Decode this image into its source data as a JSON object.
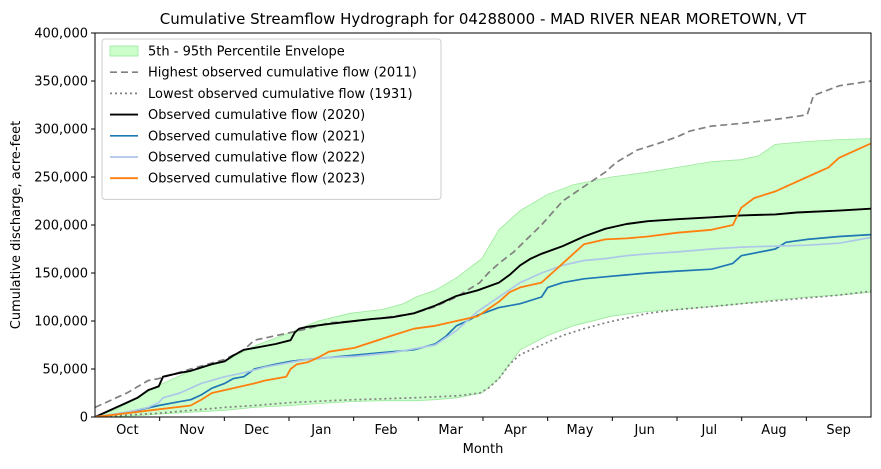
{
  "chart_data": {
    "type": "line",
    "title": "Cumulative Streamflow Hydrograph for 04288000 - MAD RIVER NEAR MORETOWN, VT",
    "xlabel": "Month",
    "ylabel": "Cumulative discharge, acre-feet",
    "x_unit": "day of water year (Oct 1 = 0)",
    "xlim": [
      0,
      365
    ],
    "ylim": [
      0,
      400000
    ],
    "y_ticks": [
      0,
      50000,
      100000,
      150000,
      200000,
      250000,
      300000,
      350000,
      400000
    ],
    "y_tick_labels": [
      "0",
      "50,000",
      "100,000",
      "150,000",
      "200,000",
      "250,000",
      "300,000",
      "350,000",
      "400,000"
    ],
    "x_categories": [
      "Oct",
      "Nov",
      "Dec",
      "Jan",
      "Feb",
      "Mar",
      "Apr",
      "May",
      "Jun",
      "Jul",
      "Aug",
      "Sep"
    ],
    "grid": false,
    "legend_position": "upper-left",
    "envelope": {
      "name": "5th - 95th Percentile Envelope",
      "color": "#ccffcc",
      "edge_color": "#9be89b",
      "x": [
        0,
        10,
        20,
        30,
        45,
        61,
        75,
        92,
        105,
        120,
        135,
        145,
        151,
        160,
        170,
        182,
        190,
        200,
        213,
        225,
        243,
        260,
        274,
        290,
        304,
        312,
        320,
        335,
        350,
        365
      ],
      "upper": [
        0,
        8000,
        20000,
        33000,
        48000,
        58000,
        74000,
        88000,
        100000,
        108000,
        112000,
        118000,
        125000,
        132000,
        145000,
        165000,
        195000,
        215000,
        232000,
        242000,
        250000,
        255000,
        260000,
        266000,
        268000,
        272000,
        284000,
        287000,
        289000,
        290000
      ],
      "lower": [
        0,
        500,
        1500,
        3000,
        5000,
        7000,
        10000,
        12000,
        14000,
        16000,
        17000,
        17000,
        17000,
        18000,
        20000,
        25000,
        40000,
        70000,
        85000,
        95000,
        105000,
        110000,
        112000,
        115000,
        118000,
        120000,
        122000,
        125000,
        127000,
        130000
      ]
    },
    "series": [
      {
        "name": "Highest observed cumulative flow (2011)",
        "color": "#808080",
        "dash": "7,4",
        "width": 1.7,
        "x": [
          0,
          8,
          15,
          25,
          30,
          45,
          61,
          70,
          75,
          92,
          100,
          110,
          122,
          135,
          150,
          160,
          170,
          181,
          185,
          190,
          197,
          203,
          210,
          220,
          230,
          240,
          245,
          255,
          265,
          274,
          280,
          290,
          305,
          320,
          330,
          335,
          338,
          350,
          365
        ],
        "y": [
          10000,
          18000,
          25000,
          38000,
          40000,
          50000,
          60000,
          70000,
          80000,
          88000,
          92000,
          98000,
          100000,
          103000,
          108000,
          115000,
          125000,
          140000,
          150000,
          160000,
          172000,
          185000,
          200000,
          225000,
          240000,
          255000,
          265000,
          278000,
          285000,
          292000,
          298000,
          303000,
          306000,
          310000,
          313000,
          315000,
          335000,
          345000,
          350000
        ]
      },
      {
        "name": "Lowest observed cumulative flow (1931)",
        "color": "#808080",
        "dash": "2,3",
        "width": 1.7,
        "x": [
          0,
          15,
          30,
          45,
          61,
          75,
          92,
          110,
          122,
          135,
          150,
          160,
          170,
          181,
          185,
          190,
          195,
          200,
          210,
          220,
          230,
          240,
          250,
          260,
          274,
          290,
          304,
          320,
          335,
          350,
          365
        ],
        "y": [
          0,
          2000,
          4000,
          7000,
          10000,
          12000,
          15000,
          17000,
          18000,
          19000,
          20000,
          21000,
          22000,
          25000,
          30000,
          40000,
          55000,
          65000,
          75000,
          85000,
          92000,
          98000,
          103000,
          108000,
          112000,
          115000,
          118000,
          121000,
          124000,
          127000,
          131000
        ]
      },
      {
        "name": "Observed cumulative flow (2020)",
        "color": "#000000",
        "dash": "",
        "width": 1.9,
        "x": [
          0,
          5,
          10,
          15,
          20,
          25,
          30,
          32,
          40,
          45,
          55,
          61,
          65,
          70,
          75,
          85,
          92,
          94,
          96,
          100,
          110,
          122,
          130,
          140,
          150,
          160,
          170,
          180,
          190,
          195,
          200,
          205,
          210,
          220,
          230,
          240,
          250,
          260,
          274,
          290,
          304,
          320,
          330,
          350,
          365
        ],
        "y": [
          0,
          5000,
          10000,
          15000,
          20000,
          28000,
          32000,
          42000,
          46000,
          48000,
          55000,
          58000,
          64000,
          70000,
          72000,
          76000,
          80000,
          88000,
          92000,
          94000,
          97000,
          100000,
          102000,
          104000,
          108000,
          116000,
          126000,
          132000,
          140000,
          148000,
          158000,
          165000,
          170000,
          178000,
          188000,
          196000,
          201000,
          204000,
          206000,
          208000,
          210000,
          211000,
          213000,
          215000,
          217000
        ]
      },
      {
        "name": "Observed cumulative flow (2021)",
        "color": "#1f77b4",
        "dash": "",
        "width": 1.7,
        "x": [
          0,
          10,
          20,
          30,
          40,
          45,
          50,
          55,
          61,
          65,
          70,
          75,
          85,
          92,
          100,
          110,
          120,
          130,
          140,
          150,
          160,
          165,
          170,
          175,
          180,
          185,
          190,
          200,
          210,
          213,
          220,
          230,
          240,
          250,
          260,
          274,
          290,
          300,
          304,
          320,
          325,
          335,
          350,
          365
        ],
        "y": [
          0,
          3000,
          7000,
          12000,
          16000,
          18000,
          23000,
          30000,
          35000,
          40000,
          42000,
          50000,
          55000,
          58000,
          60000,
          62000,
          64000,
          66000,
          68000,
          70000,
          76000,
          84000,
          95000,
          100000,
          106000,
          110000,
          114000,
          118000,
          125000,
          135000,
          140000,
          144000,
          146000,
          148000,
          150000,
          152000,
          154000,
          160000,
          168000,
          175000,
          182000,
          185000,
          188000,
          190000
        ]
      },
      {
        "name": "Observed cumulative flow (2022)",
        "color": "#aec7e8",
        "dash": "",
        "width": 1.7,
        "x": [
          0,
          15,
          25,
          30,
          32,
          40,
          45,
          50,
          61,
          70,
          80,
          92,
          100,
          110,
          122,
          140,
          160,
          170,
          180,
          190,
          200,
          210,
          220,
          230,
          240,
          250,
          260,
          274,
          290,
          304,
          320,
          335,
          350,
          365
        ],
        "y": [
          0,
          5000,
          10000,
          15000,
          20000,
          25000,
          30000,
          35000,
          42000,
          46000,
          52000,
          57000,
          60000,
          62000,
          63000,
          67000,
          75000,
          90000,
          110000,
          125000,
          140000,
          150000,
          158000,
          163000,
          165000,
          168000,
          170000,
          172000,
          175000,
          177000,
          178000,
          179000,
          181000,
          187000
        ]
      },
      {
        "name": "Observed cumulative flow (2023)",
        "color": "#ff7f0e",
        "dash": "",
        "width": 1.8,
        "x": [
          0,
          15,
          30,
          45,
          50,
          55,
          61,
          75,
          80,
          85,
          90,
          92,
          95,
          100,
          105,
          110,
          122,
          140,
          150,
          160,
          170,
          180,
          190,
          195,
          200,
          210,
          215,
          220,
          230,
          240,
          250,
          260,
          274,
          290,
          300,
          304,
          310,
          320,
          325,
          335,
          345,
          350,
          365
        ],
        "y": [
          0,
          4000,
          8000,
          12000,
          18000,
          25000,
          28000,
          35000,
          38000,
          40000,
          42000,
          50000,
          55000,
          57000,
          62000,
          68000,
          72000,
          85000,
          92000,
          95000,
          100000,
          105000,
          120000,
          130000,
          135000,
          140000,
          150000,
          160000,
          180000,
          185000,
          186000,
          188000,
          192000,
          195000,
          200000,
          218000,
          228000,
          235000,
          240000,
          250000,
          260000,
          270000,
          285000
        ]
      }
    ]
  }
}
